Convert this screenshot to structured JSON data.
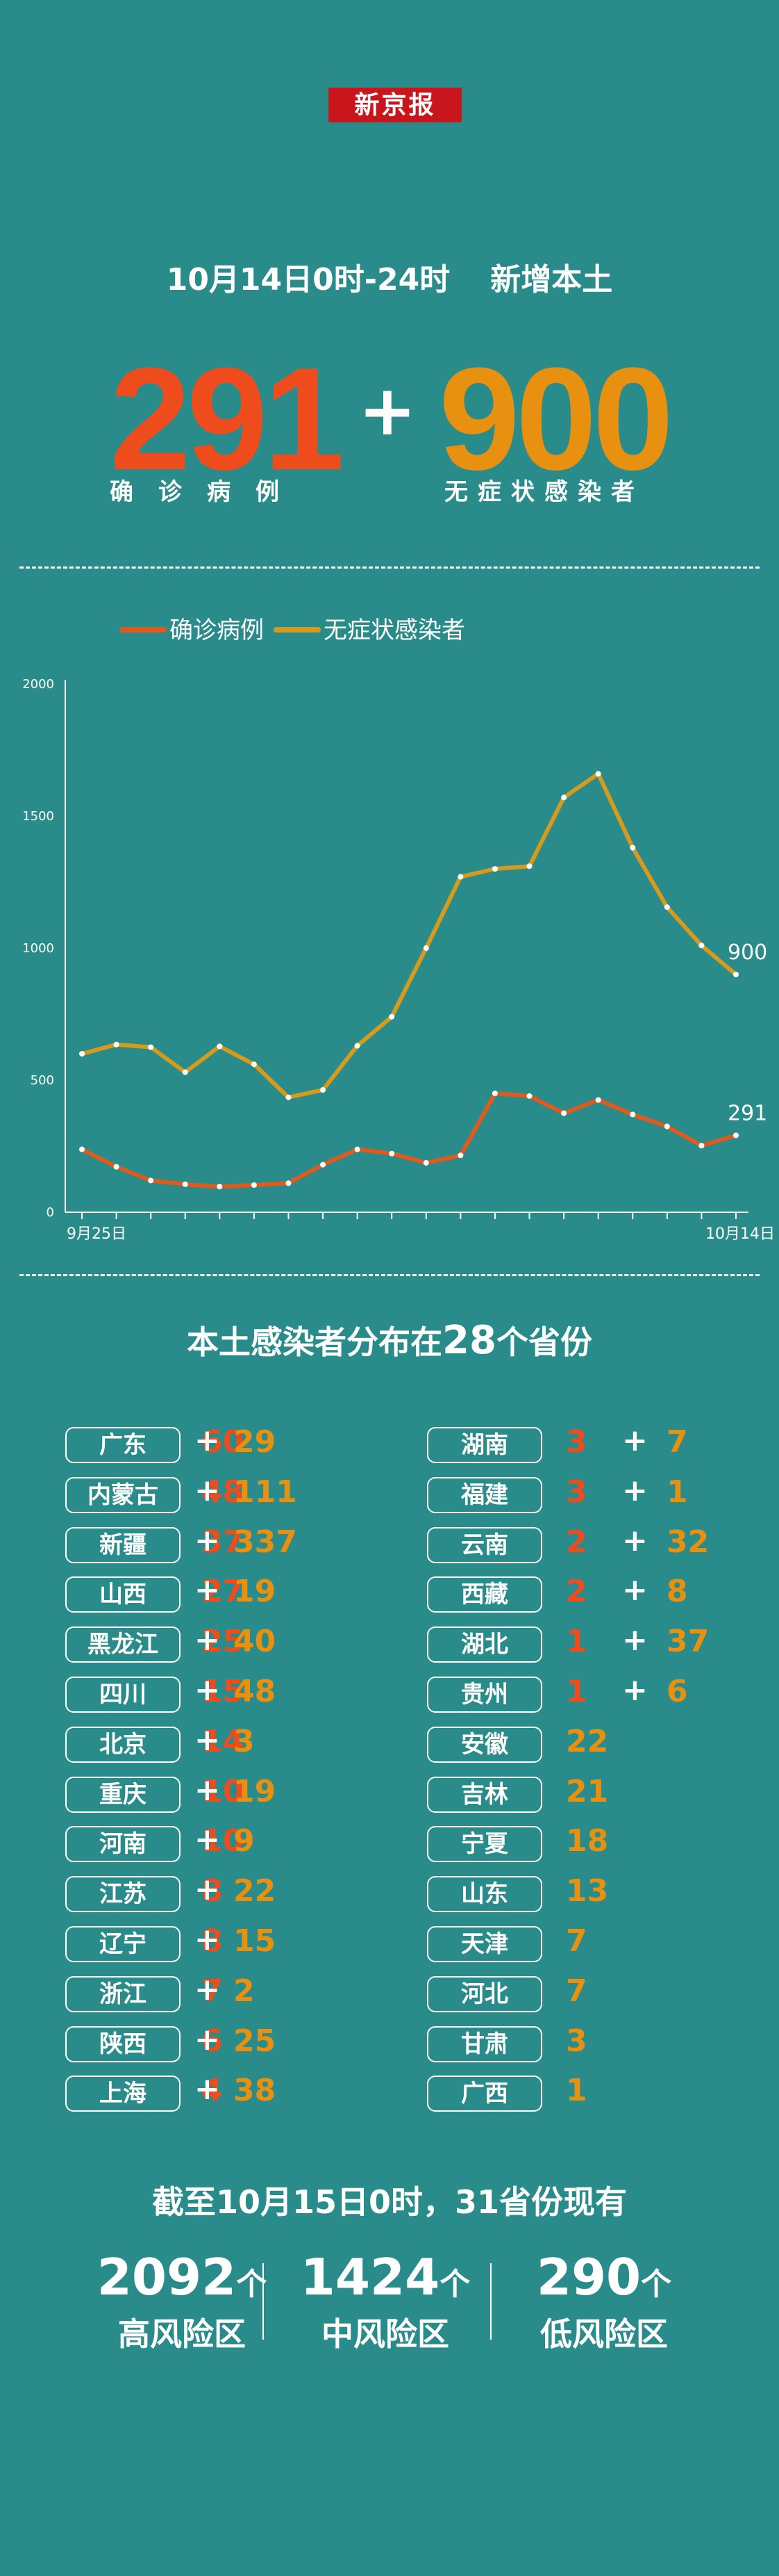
{
  "header": {
    "logo_text": "新京报",
    "title_time": "10月14日0时-24时",
    "title_label": "新增本土",
    "confirmed": "291",
    "plus": "+",
    "asymptomatic": "900",
    "confirmed_label": "确诊病例",
    "asymptomatic_label": "无症状感染者"
  },
  "colors": {
    "background": "#2a8b8b",
    "confirmed": "#ee4c1c",
    "asymptomatic": "#e8900f",
    "chart_confirmed_line": "#e05a1e",
    "chart_asym_line": "#d69a1c"
  },
  "chart_data": {
    "type": "line",
    "x": [
      "9月25日",
      "9月26日",
      "9月27日",
      "9月28日",
      "9月29日",
      "9月30日",
      "10月1日",
      "10月2日",
      "10月3日",
      "10月4日",
      "10月5日",
      "10月6日",
      "10月7日",
      "10月8日",
      "10月9日",
      "10月10日",
      "10月11日",
      "10月12日",
      "10月13日",
      "10月14日"
    ],
    "x_tick_labels": [
      "9月25日",
      "10月14日"
    ],
    "series": [
      {
        "name": "确诊病例",
        "values": [
          238,
          172,
          120,
          106,
          97,
          103,
          110,
          180,
          238,
          222,
          187,
          215,
          450,
          440,
          375,
          425,
          370,
          325,
          252,
          291
        ],
        "end_label": "291"
      },
      {
        "name": "无症状感染者",
        "values": [
          600,
          635,
          625,
          530,
          628,
          560,
          435,
          463,
          630,
          740,
          1000,
          1270,
          1300,
          1310,
          1570,
          1660,
          1380,
          1155,
          1010,
          900
        ],
        "end_label": "900"
      }
    ],
    "ylim": [
      0,
      2000
    ],
    "y_ticks": [
      "0",
      "500",
      "1000",
      "1500",
      "2000"
    ],
    "grid": false,
    "legend_position": "top-left"
  },
  "provinces": {
    "title_prefix": "本土感染者分布在",
    "title_count": "28",
    "title_suffix": "个省份",
    "plus": "+",
    "left": [
      {
        "name": "广东",
        "confirmed": "60",
        "asym": "29"
      },
      {
        "name": "内蒙古",
        "confirmed": "48",
        "asym": "111"
      },
      {
        "name": "新疆",
        "confirmed": "37",
        "asym": "337"
      },
      {
        "name": "山西",
        "confirmed": "27",
        "asym": "19"
      },
      {
        "name": "黑龙江",
        "confirmed": "25",
        "asym": "40"
      },
      {
        "name": "四川",
        "confirmed": "15",
        "asym": "48"
      },
      {
        "name": "北京",
        "confirmed": "14",
        "asym": "3"
      },
      {
        "name": "重庆",
        "confirmed": "10",
        "asym": "19"
      },
      {
        "name": "河南",
        "confirmed": "10",
        "asym": "9"
      },
      {
        "name": "江苏",
        "confirmed": "8",
        "asym": "22"
      },
      {
        "name": "辽宁",
        "confirmed": "8",
        "asym": "15"
      },
      {
        "name": "浙江",
        "confirmed": "7",
        "asym": "2"
      },
      {
        "name": "陕西",
        "confirmed": "6",
        "asym": "25"
      },
      {
        "name": "上海",
        "confirmed": "4",
        "asym": "38"
      }
    ],
    "right": [
      {
        "name": "湖南",
        "confirmed": "3",
        "asym": "7"
      },
      {
        "name": "福建",
        "confirmed": "3",
        "asym": "1"
      },
      {
        "name": "云南",
        "confirmed": "2",
        "asym": "32"
      },
      {
        "name": "西藏",
        "confirmed": "2",
        "asym": "8"
      },
      {
        "name": "湖北",
        "confirmed": "1",
        "asym": "37"
      },
      {
        "name": "贵州",
        "confirmed": "1",
        "asym": "6"
      },
      {
        "name": "安徽",
        "confirmed": "",
        "asym": "22"
      },
      {
        "name": "吉林",
        "confirmed": "",
        "asym": "21"
      },
      {
        "name": "宁夏",
        "confirmed": "",
        "asym": "18"
      },
      {
        "name": "山东",
        "confirmed": "",
        "asym": "13"
      },
      {
        "name": "天津",
        "confirmed": "",
        "asym": "7"
      },
      {
        "name": "河北",
        "confirmed": "",
        "asym": "7"
      },
      {
        "name": "甘肃",
        "confirmed": "",
        "asym": "3"
      },
      {
        "name": "广西",
        "confirmed": "",
        "asym": "1"
      }
    ]
  },
  "risk": {
    "title": "截至10月15日0时，31省份现有",
    "unit": "个",
    "high": {
      "count": "2092",
      "label": "高风险区"
    },
    "mid": {
      "count": "1424",
      "label": "中风险区"
    },
    "low": {
      "count": "290",
      "label": "低风险区"
    }
  }
}
